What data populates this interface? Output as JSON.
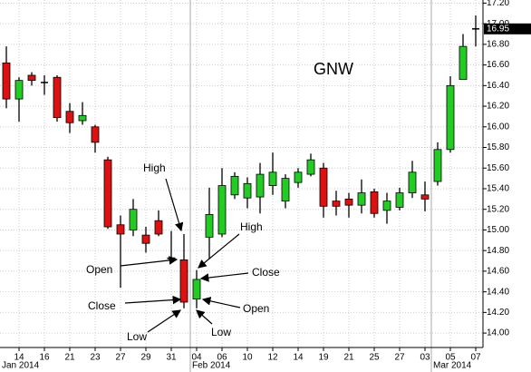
{
  "chart_data": {
    "type": "candlestick",
    "title": "GNW",
    "categories": [
      null,
      "14",
      null,
      "16",
      null,
      "21",
      null,
      "23",
      null,
      "27",
      null,
      "29",
      null,
      "31",
      null,
      "04",
      null,
      "06",
      null,
      "10",
      null,
      "12",
      null,
      "14",
      null,
      "19",
      null,
      "21",
      null,
      "25",
      null,
      "27",
      null,
      "03",
      null,
      "05",
      null,
      "07"
    ],
    "period_labels": [
      "Jan 2014",
      "Feb 2014",
      "Mar 2014"
    ],
    "open": [
      16.62,
      16.27,
      16.5,
      16.43,
      16.48,
      16.15,
      16.06,
      16.0,
      15.68,
      15.05,
      15.0,
      14.95,
      15.09,
      14.72,
      14.71,
      14.33,
      14.93,
      14.96,
      15.34,
      15.31,
      15.32,
      15.43,
      15.28,
      15.46,
      15.54,
      15.6,
      15.28,
      15.3,
      15.24,
      15.37,
      15.19,
      15.22,
      15.36,
      15.34,
      15.47,
      15.78,
      16.46,
      16.95
    ],
    "high": [
      16.78,
      16.48,
      16.53,
      16.5,
      16.5,
      16.23,
      16.24,
      16.02,
      15.71,
      15.14,
      15.3,
      15.03,
      15.19,
      14.99,
      14.96,
      14.61,
      15.41,
      15.6,
      15.56,
      15.51,
      15.65,
      15.75,
      15.54,
      15.6,
      15.74,
      15.65,
      15.38,
      15.36,
      15.49,
      15.4,
      15.36,
      15.41,
      15.67,
      15.47,
      15.85,
      16.49,
      16.9,
      17.08
    ],
    "low": [
      16.18,
      16.05,
      16.4,
      16.31,
      16.05,
      15.94,
      16.02,
      15.75,
      15.01,
      14.44,
      14.94,
      14.78,
      14.94,
      14.71,
      14.24,
      14.24,
      14.72,
      14.93,
      15.3,
      15.21,
      15.16,
      15.34,
      15.21,
      15.41,
      15.52,
      15.12,
      15.14,
      15.12,
      15.16,
      15.12,
      15.06,
      15.19,
      15.31,
      15.18,
      15.43,
      15.75,
      16.46,
      16.78
    ],
    "close": [
      16.27,
      16.45,
      16.45,
      16.43,
      16.09,
      16.04,
      16.11,
      15.85,
      15.03,
      14.96,
      15.2,
      14.87,
      14.96,
      14.73,
      14.3,
      14.52,
      15.15,
      15.43,
      15.52,
      15.45,
      15.54,
      15.56,
      15.5,
      15.56,
      15.68,
      15.23,
      15.23,
      15.24,
      15.36,
      15.16,
      15.28,
      15.36,
      15.56,
      15.3,
      15.78,
      16.4,
      16.78,
      16.95
    ],
    "up_color": "#22cc22",
    "down_color": "#dd1111",
    "flat_color": "#000000",
    "ylim": [
      13.86,
      17.23
    ],
    "yticks": [
      {
        "value": 14,
        "label": "14.00"
      },
      {
        "value": 14.2,
        "label": "14.20"
      },
      {
        "value": 14.4,
        "label": "14.40"
      },
      {
        "value": 14.6,
        "label": "14.60"
      },
      {
        "value": 14.8,
        "label": "14.80"
      },
      {
        "value": 15,
        "label": "15.00"
      },
      {
        "value": 15.2,
        "label": "15.20"
      },
      {
        "value": 15.4,
        "label": "15.40"
      },
      {
        "value": 15.6,
        "label": "15.60"
      },
      {
        "value": 15.8,
        "label": "15.80"
      },
      {
        "value": 16,
        "label": "16.00"
      },
      {
        "value": 16.2,
        "label": "16.20"
      },
      {
        "value": 16.4,
        "label": "16.40"
      },
      {
        "value": 16.6,
        "label": "16.60"
      },
      {
        "value": 16.8,
        "label": "16.80"
      },
      {
        "value": 17,
        "label": "17.00"
      },
      {
        "value": 17.2,
        "label": "17.20"
      }
    ],
    "last_price": 16.95,
    "grid": true,
    "annotations": [
      "High",
      "Open",
      "Close",
      "Low",
      "High",
      "Close",
      "Open",
      "Low"
    ]
  }
}
